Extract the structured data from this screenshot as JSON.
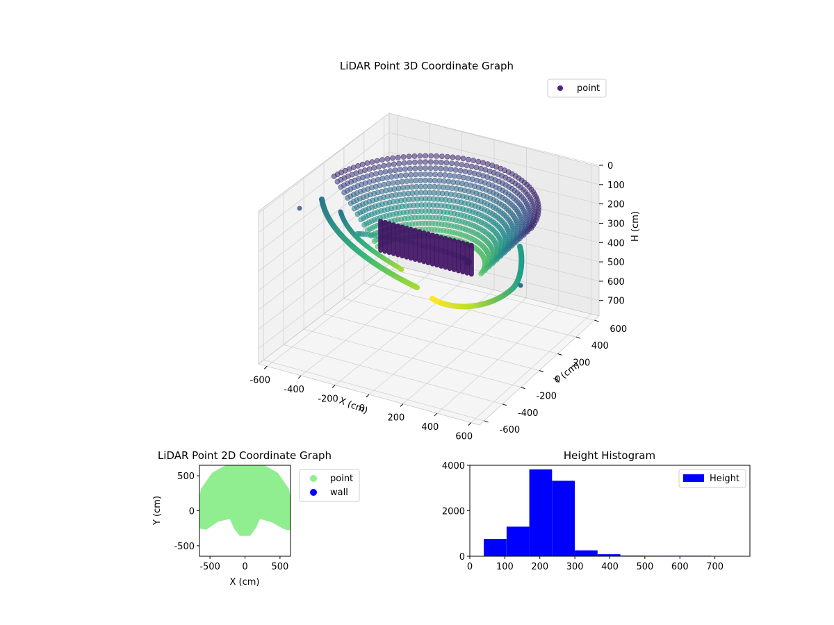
{
  "chart_data": [
    {
      "type": "scatter",
      "projection": "3d",
      "title": "LiDAR Point 3D Coordinate Graph",
      "xlabel": "X (cm)",
      "ylabel": "Y (cm)",
      "zlabel": "H (cm)",
      "xlim": [
        -650,
        650
      ],
      "ylim": [
        -650,
        650
      ],
      "zlim": [
        780,
        0
      ],
      "xticks": [
        -600,
        -400,
        -200,
        0,
        200,
        400,
        600
      ],
      "yticks": [
        -600,
        -400,
        -200,
        0,
        200,
        400,
        600
      ],
      "zticks": [
        0,
        100,
        200,
        300,
        400,
        500,
        600,
        700
      ],
      "zaxis_inverted": true,
      "colormap": "viridis",
      "colormap_stops": [
        "#440154",
        "#3b528b",
        "#21918c",
        "#5ec962",
        "#fde725"
      ],
      "grid": true,
      "legend_placement": "top-right",
      "series": [
        {
          "name": "point",
          "legend_color": "#482878",
          "description": "dome of rings; radius ~600 cm, height 50-400 cm, plus low arcs toward the front",
          "samples": [
            {
              "x": -500,
              "y": 300,
              "h": 120
            },
            {
              "x": 0,
              "y": 600,
              "h": 60
            },
            {
              "x": 500,
              "y": 300,
              "h": 120
            },
            {
              "x": 600,
              "y": 0,
              "h": 250
            },
            {
              "x": -300,
              "y": 0,
              "h": 280
            },
            {
              "x": 0,
              "y": 0,
              "h": 330
            },
            {
              "x": 300,
              "y": 0,
              "h": 300
            },
            {
              "x": -550,
              "y": -150,
              "h": 560
            },
            {
              "x": 0,
              "y": -300,
              "h": 700
            },
            {
              "x": 550,
              "y": -200,
              "h": 560
            }
          ]
        }
      ]
    },
    {
      "type": "scatter",
      "title": "LiDAR Point 2D Coordinate Graph",
      "xlabel": "X (cm)",
      "ylabel": "Y (cm)",
      "xlim": [
        -650,
        650
      ],
      "ylim": [
        -650,
        650
      ],
      "xticks": [
        -500,
        0,
        500
      ],
      "yticks": [
        -500,
        0,
        500
      ],
      "legend_placement": "outside-right",
      "series": [
        {
          "name": "point",
          "color": "#90ee90",
          "description": "filled upper half-disc of radius ~650 cm, with two downward arms and a small lobe near x=0",
          "outline": [
            {
              "x": -640,
              "y": 80
            },
            {
              "x": -600,
              "y": 300
            },
            {
              "x": -450,
              "y": 520
            },
            {
              "x": -250,
              "y": 630
            },
            {
              "x": 0,
              "y": 660
            },
            {
              "x": 250,
              "y": 630
            },
            {
              "x": 450,
              "y": 520
            },
            {
              "x": 600,
              "y": 300
            },
            {
              "x": 640,
              "y": 80
            },
            {
              "x": 640,
              "y": -100
            },
            {
              "x": 620,
              "y": -250
            },
            {
              "x": 560,
              "y": -230
            },
            {
              "x": 400,
              "y": -140
            },
            {
              "x": 200,
              "y": -80
            },
            {
              "x": 130,
              "y": -230
            },
            {
              "x": 60,
              "y": -330
            },
            {
              "x": -60,
              "y": -330
            },
            {
              "x": -130,
              "y": -240
            },
            {
              "x": -200,
              "y": -80
            },
            {
              "x": -400,
              "y": -130
            },
            {
              "x": -560,
              "y": -240
            },
            {
              "x": -620,
              "y": -230
            },
            {
              "x": -640,
              "y": -60
            }
          ]
        },
        {
          "name": "wall",
          "color": "#0000ff",
          "points": []
        }
      ]
    },
    {
      "type": "bar",
      "title": "Height Histogram",
      "xlabel": "",
      "ylabel": "",
      "xlim": [
        0,
        800
      ],
      "ylim": [
        0,
        4000
      ],
      "xticks": [
        0,
        100,
        200,
        300,
        400,
        500,
        600,
        700
      ],
      "yticks": [
        0,
        2000,
        4000
      ],
      "legend_placement": "top-right",
      "series": [
        {
          "name": "Height",
          "color": "#0000ff",
          "bins": [
            {
              "start": 40,
              "end": 105,
              "count": 760
            },
            {
              "start": 105,
              "end": 170,
              "count": 1300
            },
            {
              "start": 170,
              "end": 235,
              "count": 3820
            },
            {
              "start": 235,
              "end": 300,
              "count": 3320
            },
            {
              "start": 300,
              "end": 365,
              "count": 260
            },
            {
              "start": 365,
              "end": 430,
              "count": 90
            },
            {
              "start": 430,
              "end": 495,
              "count": 30
            },
            {
              "start": 495,
              "end": 560,
              "count": 20
            },
            {
              "start": 560,
              "end": 625,
              "count": 15
            },
            {
              "start": 625,
              "end": 690,
              "count": 15
            }
          ]
        }
      ]
    }
  ]
}
